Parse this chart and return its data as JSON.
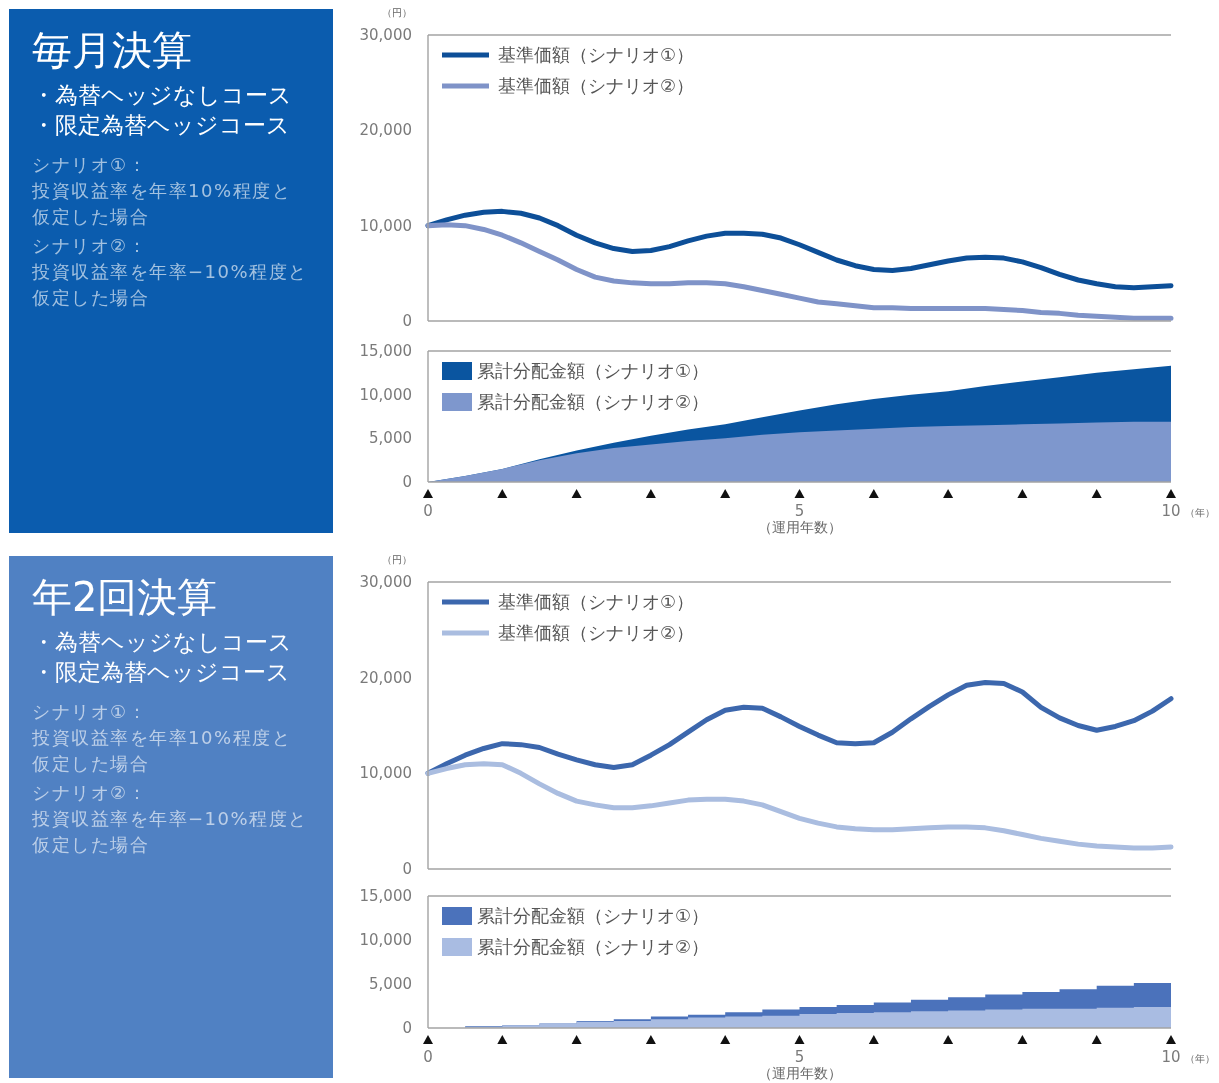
{
  "chart_data": [
    {
      "type": "other",
      "color": "#0b5cae",
      "title": "毎月決算",
      "annotations": [
        "・為替ヘッジなしコース",
        "・限定為替ヘッジコース",
        "シナリオ①：",
        "投資収益率を年率10%程度と仮定した場合",
        "シナリオ②：",
        "投資収益率を年率−10%程度と仮定した場合"
      ]
    },
    {
      "type": "line",
      "ylabel": "（円）",
      "xlim": [
        0,
        10
      ],
      "ylim": [
        0,
        30000
      ],
      "yticks": [
        {
          "value": 0,
          "label": "0"
        },
        {
          "value": 10000,
          "label": "10,000"
        },
        {
          "value": 20000,
          "label": "20,000"
        },
        {
          "value": 30000,
          "label": "30,000"
        }
      ],
      "tick_labels": "y",
      "legend": "top left",
      "x": [
        0,
        0.25,
        0.5,
        0.75,
        1,
        1.25,
        1.5,
        1.75,
        2,
        2.25,
        2.5,
        2.75,
        3,
        3.25,
        3.5,
        3.75,
        4,
        4.25,
        4.5,
        4.75,
        5,
        5.25,
        5.5,
        5.75,
        6,
        6.25,
        6.5,
        6.75,
        7,
        7.25,
        7.5,
        7.75,
        8,
        8.25,
        8.5,
        8.75,
        9,
        9.25,
        9.5,
        9.75,
        10
      ],
      "series": [
        {
          "name": "基準価額（シナリオ①）",
          "color": "#0d4f98",
          "values": [
            10000,
            10600,
            11100,
            11400,
            11500,
            11300,
            10800,
            10000,
            9000,
            8200,
            7600,
            7300,
            7400,
            7800,
            8400,
            8900,
            9200,
            9200,
            9100,
            8700,
            8000,
            7200,
            6400,
            5800,
            5400,
            5300,
            5500,
            5900,
            6300,
            6600,
            6700,
            6600,
            6200,
            5600,
            4900,
            4300,
            3900,
            3600,
            3500,
            3600,
            3700
          ]
        },
        {
          "name": "基準価額（シナリオ②）",
          "color": "#7f93c8",
          "values": [
            10000,
            10100,
            10000,
            9600,
            9000,
            8200,
            7300,
            6400,
            5400,
            4600,
            4200,
            4000,
            3900,
            3900,
            4000,
            4000,
            3900,
            3600,
            3200,
            2800,
            2400,
            2000,
            1800,
            1600,
            1400,
            1400,
            1300,
            1300,
            1300,
            1300,
            1300,
            1200,
            1100,
            900,
            800,
            600,
            500,
            400,
            300,
            300,
            300
          ]
        }
      ]
    },
    {
      "type": "area",
      "xlabel": "（運用年数）",
      "annotations": [
        "（年）"
      ],
      "xlim": [
        0,
        10
      ],
      "xticks": [
        0,
        5,
        10
      ],
      "ylim": [
        0,
        15000
      ],
      "yticks": [
        {
          "value": 0,
          "label": "0"
        },
        {
          "value": 5000,
          "label": "5,000"
        },
        {
          "value": 10000,
          "label": "10,000"
        },
        {
          "value": 15000,
          "label": "15,000"
        }
      ],
      "legend": "top left",
      "x": [
        0,
        0.5,
        1,
        1.5,
        2,
        2.5,
        3,
        3.5,
        4,
        4.5,
        5,
        5.5,
        6,
        6.5,
        7,
        7.5,
        8,
        8.5,
        9,
        9.5,
        10
      ],
      "series": [
        {
          "name": "累計分配金額（シナリオ①）",
          "color": "#0a55a0",
          "values": [
            0,
            700,
            1500,
            2600,
            3600,
            4500,
            5300,
            6000,
            6600,
            7400,
            8200,
            8900,
            9500,
            10000,
            10400,
            11000,
            11500,
            12000,
            12500,
            12900,
            13300
          ]
        },
        {
          "name": "累計分配金額（シナリオ②）",
          "color": "#7e97cd",
          "values": [
            0,
            700,
            1500,
            2500,
            3300,
            3900,
            4300,
            4700,
            5000,
            5400,
            5700,
            5900,
            6100,
            6300,
            6400,
            6500,
            6600,
            6700,
            6800,
            6900,
            6900
          ]
        }
      ]
    },
    {
      "type": "other",
      "color": "#5081c3",
      "title": "年2回決算",
      "annotations": [
        "・為替ヘッジなしコース",
        "・限定為替ヘッジコース",
        "シナリオ①：",
        "投資収益率を年率10%程度と仮定した場合",
        "シナリオ②：",
        "投資収益率を年率−10%程度と仮定した場合"
      ]
    },
    {
      "type": "line",
      "ylabel": "（円）",
      "xlim": [
        0,
        10
      ],
      "ylim": [
        0,
        30000
      ],
      "yticks": [
        {
          "value": 0,
          "label": "0"
        },
        {
          "value": 10000,
          "label": "10,000"
        },
        {
          "value": 20000,
          "label": "20,000"
        },
        {
          "value": 30000,
          "label": "30,000"
        }
      ],
      "tick_labels": "y",
      "legend": "top left",
      "x": [
        0,
        0.25,
        0.5,
        0.75,
        1,
        1.25,
        1.5,
        1.75,
        2,
        2.25,
        2.5,
        2.75,
        3,
        3.25,
        3.5,
        3.75,
        4,
        4.25,
        4.5,
        4.75,
        5,
        5.25,
        5.5,
        5.75,
        6,
        6.25,
        6.5,
        6.75,
        7,
        7.25,
        7.5,
        7.75,
        8,
        8.25,
        8.5,
        8.75,
        9,
        9.25,
        9.5,
        9.75,
        10
      ],
      "series": [
        {
          "name": "基準価額（シナリオ①）",
          "color": "#3c67ad",
          "values": [
            10000,
            11000,
            11900,
            12600,
            13100,
            13000,
            12700,
            12000,
            11400,
            10900,
            10600,
            10900,
            11900,
            13000,
            14300,
            15600,
            16600,
            16900,
            16800,
            15900,
            14900,
            14000,
            13200,
            13100,
            13200,
            14300,
            15700,
            17000,
            18200,
            19200,
            19500,
            19400,
            18500,
            16900,
            15800,
            15000,
            14500,
            14900,
            15500,
            16500,
            17800
          ]
        },
        {
          "name": "基準価額（シナリオ②）",
          "color": "#aabde0",
          "values": [
            10000,
            10500,
            10900,
            11000,
            10900,
            10000,
            8900,
            7900,
            7100,
            6700,
            6400,
            6400,
            6600,
            6900,
            7200,
            7300,
            7300,
            7100,
            6700,
            6000,
            5300,
            4800,
            4400,
            4200,
            4100,
            4100,
            4200,
            4300,
            4400,
            4400,
            4300,
            4000,
            3600,
            3200,
            2900,
            2600,
            2400,
            2300,
            2200,
            2200,
            2300
          ]
        }
      ]
    },
    {
      "type": "area",
      "xlabel": "（運用年数）",
      "annotations": [
        "（年）"
      ],
      "xlim": [
        0,
        10
      ],
      "xticks": [
        0,
        5,
        10
      ],
      "ylim": [
        0,
        15000
      ],
      "yticks": [
        {
          "value": 0,
          "label": "0"
        },
        {
          "value": 5000,
          "label": "5,000"
        },
        {
          "value": 10000,
          "label": "10,000"
        },
        {
          "value": 15000,
          "label": "15,000"
        }
      ],
      "legend": "top left",
      "x": [
        0,
        0.5,
        0.5,
        1,
        1,
        1.5,
        1.5,
        2,
        2,
        2.5,
        2.5,
        3,
        3,
        3.5,
        3.5,
        4,
        4,
        4.5,
        4.5,
        5,
        5,
        5.5,
        5.5,
        6,
        6,
        6.5,
        6.5,
        7,
        7,
        7.5,
        7.5,
        8,
        8,
        8.5,
        8.5,
        9,
        9,
        9.5,
        9.5,
        10,
        10
      ],
      "series": [
        {
          "name": "累計分配金額（シナリオ①）",
          "color": "#4b72bb",
          "values": [
            0,
            0,
            200,
            200,
            300,
            300,
            500,
            500,
            800,
            800,
            1000,
            1000,
            1300,
            1300,
            1500,
            1500,
            1800,
            1800,
            2100,
            2100,
            2400,
            2400,
            2600,
            2600,
            2900,
            2900,
            3200,
            3200,
            3500,
            3500,
            3800,
            3800,
            4100,
            4100,
            4400,
            4400,
            4800,
            4800,
            5100,
            5100,
            5500
          ]
        },
        {
          "name": "累計分配金額（シナリオ②）",
          "color": "#a9bce2",
          "values": [
            0,
            0,
            100,
            100,
            300,
            300,
            500,
            500,
            700,
            700,
            800,
            800,
            1000,
            1000,
            1200,
            1200,
            1300,
            1300,
            1400,
            1400,
            1600,
            1600,
            1700,
            1700,
            1800,
            1800,
            1900,
            1900,
            2000,
            2000,
            2100,
            2100,
            2200,
            2200,
            2200,
            2200,
            2300,
            2300,
            2400,
            2400,
            2400
          ]
        }
      ]
    }
  ]
}
